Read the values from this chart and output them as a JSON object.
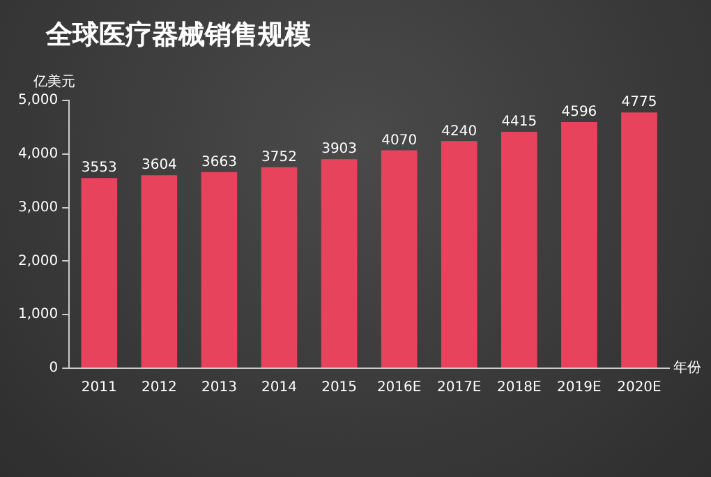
{
  "chart_data": {
    "type": "bar",
    "title": "全球医疗器械销售规模",
    "ylabel": "亿美元",
    "xlabel": "年份",
    "categories": [
      "2011",
      "2012",
      "2013",
      "2014",
      "2015",
      "2016E",
      "2017E",
      "2018E",
      "2019E",
      "2020E"
    ],
    "values": [
      3553,
      3604,
      3663,
      3752,
      3903,
      4070,
      4240,
      4415,
      4596,
      4775
    ],
    "color": "#e8435c",
    "data_labels": true,
    "grid": false,
    "legend": false,
    "ylim": [
      0,
      5000
    ],
    "yticks": [
      0,
      {
        "value": 1000,
        "label": "1,000"
      },
      {
        "value": 2000,
        "label": "2,000"
      },
      {
        "value": 3000,
        "label": "3,000"
      },
      {
        "value": 4000,
        "label": "4,000"
      },
      {
        "value": 5000,
        "label": "5,000"
      }
    ]
  }
}
